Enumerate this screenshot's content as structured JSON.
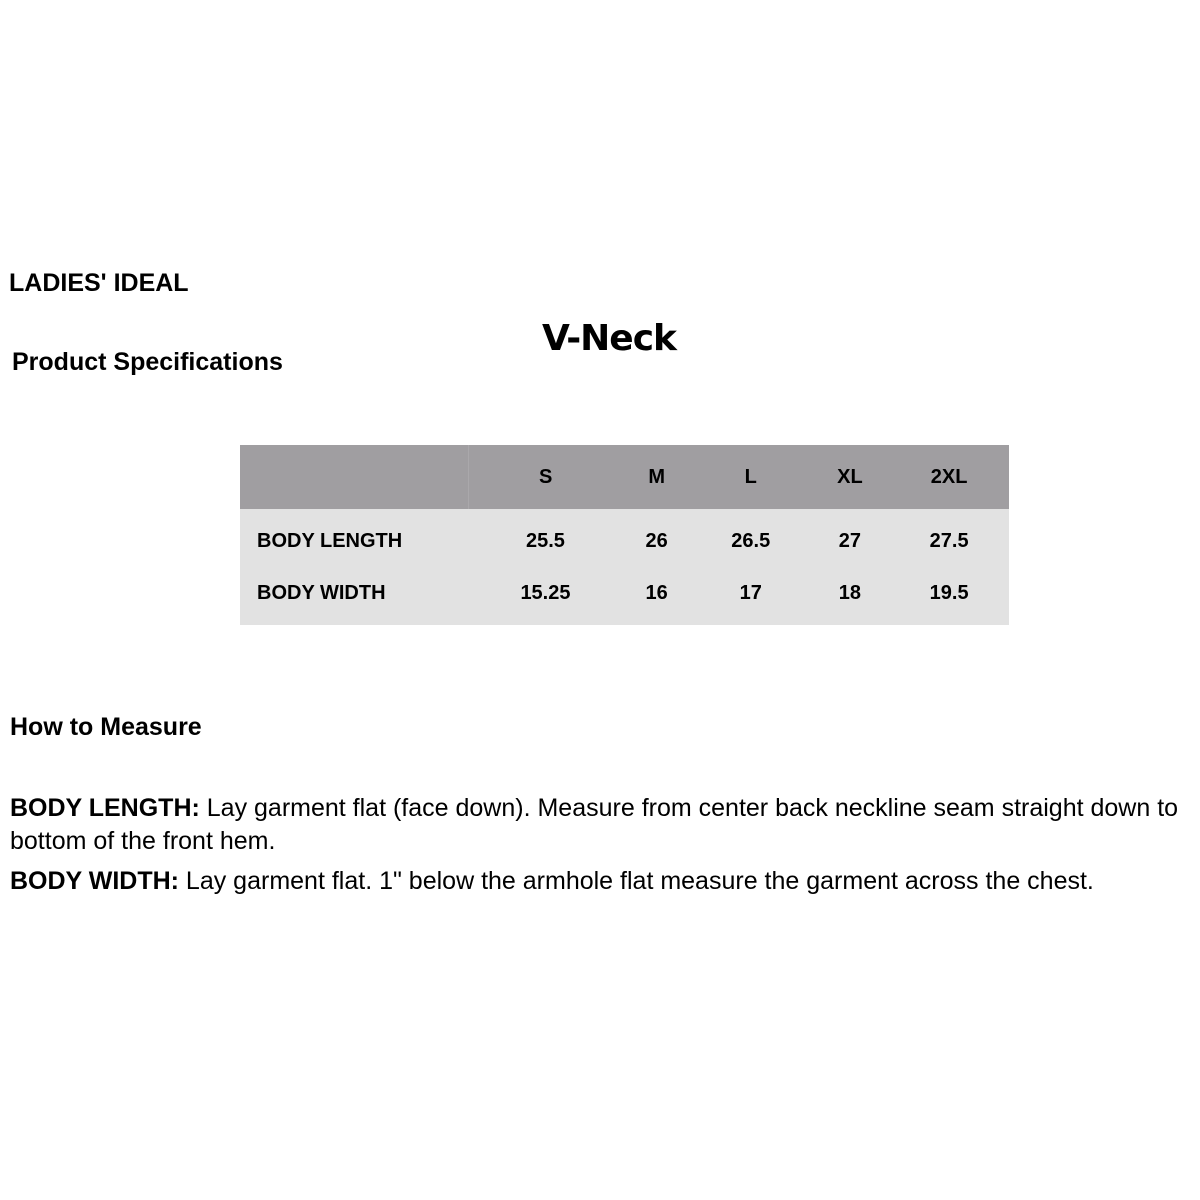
{
  "brand": "LADIES' IDEAL",
  "section_title": "Product Specifications",
  "product_title": "V-Neck",
  "table": {
    "columns": [
      "",
      "S",
      "M",
      "L",
      "XL",
      "2XL"
    ],
    "rows": [
      {
        "label": "BODY LENGTH",
        "values": [
          "25.5",
          "26",
          "26.5",
          "27",
          "27.5"
        ]
      },
      {
        "label": "BODY WIDTH",
        "values": [
          "15.25",
          "16",
          "17",
          "18",
          "19.5"
        ]
      }
    ]
  },
  "how_to_measure": {
    "heading": "How to Measure",
    "items": [
      {
        "term": "BODY LENGTH:",
        "text": " Lay garment flat (face down). Measure from center back neckline seam straight down to bottom of the front hem."
      },
      {
        "term": "BODY WIDTH:",
        "text": " Lay garment flat. 1\" below the armhole flat measure the garment across the chest."
      }
    ]
  },
  "colors": {
    "header_bg": "#a09ea1",
    "body_bg": "#e2e2e2"
  }
}
